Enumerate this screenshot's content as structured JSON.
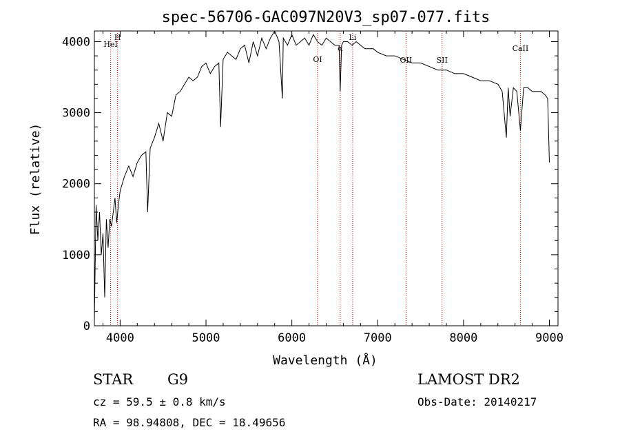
{
  "chart_data": {
    "type": "line",
    "title": "spec-56706-GAC097N20V3_sp07-077.fits",
    "xlabel": "Wavelength (Å)",
    "ylabel": "Flux (relative)",
    "xlim": [
      3700,
      9100
    ],
    "ylim": [
      0,
      4150
    ],
    "xticks": [
      4000,
      5000,
      6000,
      7000,
      8000,
      9000
    ],
    "yticks": [
      0,
      1000,
      2000,
      3000,
      4000
    ],
    "grid": false,
    "series": [
      {
        "x": [
          3700,
          3720,
          3740,
          3760,
          3780,
          3800,
          3820,
          3840,
          3860,
          3880,
          3900,
          3920,
          3940,
          3960,
          3980,
          4000,
          4050,
          4100,
          4150,
          4200,
          4250,
          4300,
          4320,
          4350,
          4400,
          4450,
          4500,
          4550,
          4600,
          4650,
          4700,
          4750,
          4800,
          4850,
          4900,
          4950,
          5000,
          5050,
          5100,
          5150,
          5170,
          5200,
          5250,
          5300,
          5350,
          5400,
          5450,
          5500,
          5550,
          5600,
          5650,
          5700,
          5750,
          5800,
          5850,
          5890,
          5900,
          5950,
          6000,
          6050,
          6100,
          6150,
          6200,
          6250,
          6300,
          6350,
          6400,
          6450,
          6500,
          6550,
          6563,
          6580,
          6600,
          6650,
          6700,
          6750,
          6800,
          6850,
          6900,
          6950,
          7000,
          7100,
          7200,
          7300,
          7400,
          7500,
          7600,
          7700,
          7800,
          7900,
          8000,
          8100,
          8200,
          8300,
          8400,
          8450,
          8498,
          8520,
          8542,
          8580,
          8620,
          8662,
          8700,
          8750,
          8800,
          8850,
          8900,
          8950,
          8980,
          9000
        ],
        "y": [
          100,
          1700,
          1200,
          1600,
          1000,
          1300,
          400,
          1500,
          1100,
          1500,
          1400,
          1600,
          1800,
          1450,
          1700,
          1900,
          2100,
          2250,
          2100,
          2300,
          2400,
          2450,
          1600,
          2500,
          2650,
          2850,
          2600,
          3000,
          2950,
          3250,
          3300,
          3400,
          3500,
          3450,
          3500,
          3650,
          3700,
          3550,
          3650,
          3700,
          2800,
          3750,
          3850,
          3800,
          3750,
          3900,
          3950,
          3700,
          4000,
          3800,
          4050,
          3900,
          4050,
          4150,
          4000,
          3200,
          4050,
          3950,
          4100,
          3950,
          4000,
          4050,
          3950,
          4100,
          4000,
          3950,
          4050,
          4000,
          3950,
          3950,
          3300,
          3950,
          4000,
          4000,
          3950,
          4000,
          3950,
          3900,
          3900,
          3900,
          3850,
          3800,
          3800,
          3750,
          3700,
          3700,
          3650,
          3600,
          3600,
          3550,
          3550,
          3500,
          3450,
          3450,
          3400,
          3300,
          2650,
          3350,
          2950,
          3350,
          3300,
          2750,
          3350,
          3350,
          3300,
          3300,
          3300,
          3250,
          3200,
          2300
        ]
      }
    ],
    "lines": [
      {
        "name": "HeI",
        "x": 3889
      },
      {
        "name": "H",
        "x": 3970
      },
      {
        "name": "OI",
        "x": 6300
      },
      {
        "name": "α",
        "x": 6563
      },
      {
        "name": "Li",
        "x": 6708
      },
      {
        "name": "OII",
        "x": 7330
      },
      {
        "name": "SII",
        "x": 7750
      },
      {
        "name": "CaII",
        "x": 8662
      }
    ]
  },
  "info": {
    "object_class": "STAR",
    "subclass": "G9",
    "survey": "LAMOST DR2",
    "cz": "cz = 59.5 ± 0.8 km/s",
    "obs_date": "Obs-Date: 20140217",
    "coords": "RA =  98.94808, DEC =  18.49656"
  }
}
